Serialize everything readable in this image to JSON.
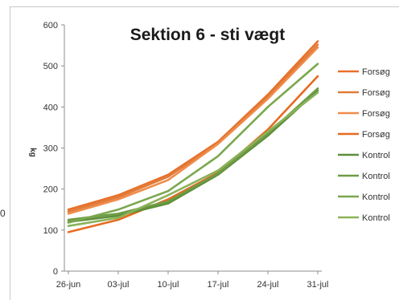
{
  "chart_data": {
    "type": "line",
    "title": "Sektion 6 - sti vægt",
    "xlabel": "",
    "ylabel": "kg",
    "categories": [
      "26-jun",
      "03-jul",
      "10-jul",
      "17-jul",
      "24-jul",
      "31-jul"
    ],
    "ylim": [
      0,
      600
    ],
    "yticks": [
      0,
      100,
      200,
      300,
      400,
      500,
      600
    ],
    "grid": false,
    "legend_position": "right",
    "series": [
      {
        "name": "Forsøg",
        "color": "#e8712a",
        "values": [
          150,
          185,
          235,
          315,
          430,
          560
        ]
      },
      {
        "name": "Forsøg",
        "color": "#e07b3a",
        "values": [
          145,
          180,
          230,
          312,
          425,
          552
        ]
      },
      {
        "name": "Forsøg",
        "color": "#ef8c4a",
        "values": [
          140,
          175,
          222,
          310,
          420,
          545
        ]
      },
      {
        "name": "Forsøg",
        "color": "#e86a20",
        "values": [
          95,
          125,
          175,
          240,
          345,
          475
        ]
      },
      {
        "name": "Kontrol",
        "color": "#5e8f3a",
        "values": [
          120,
          135,
          165,
          235,
          330,
          440
        ]
      },
      {
        "name": "Kontrol",
        "color": "#6e9c45",
        "values": [
          125,
          140,
          170,
          238,
          335,
          445
        ]
      },
      {
        "name": "Kontrol",
        "color": "#7aa84e",
        "values": [
          118,
          150,
          195,
          280,
          400,
          505
        ]
      },
      {
        "name": "Kontrol",
        "color": "#8ab35a",
        "values": [
          110,
          130,
          185,
          245,
          340,
          435
        ]
      }
    ]
  },
  "stray_label": "0"
}
